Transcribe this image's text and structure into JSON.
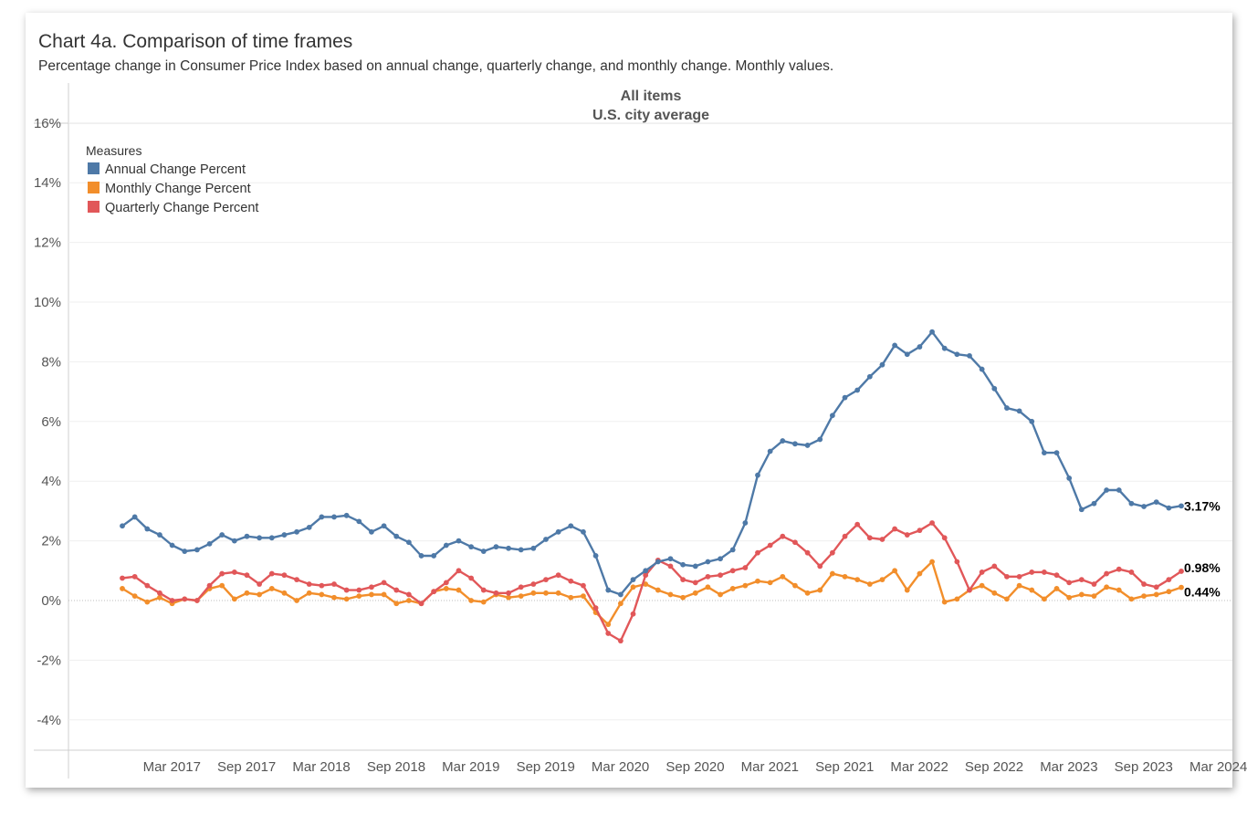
{
  "title": "Chart 4a. Comparison of time frames",
  "subtitle": "Percentage change in Consumer Price Index based on annual change, quarterly change, and monthly change. Monthly values.",
  "panel": {
    "line1": "All items",
    "line2": "U.S. city average"
  },
  "legend": {
    "title": "Measures"
  },
  "colors": {
    "annual": "#4e79a7",
    "monthly": "#f28e2b",
    "quarterly": "#e15759"
  },
  "chart_data": {
    "type": "line",
    "title": "Chart 4a. Comparison of time frames",
    "xlabel": "",
    "ylabel": "",
    "ylim": [
      -5,
      16.5
    ],
    "y_ticks": [
      "16%",
      "14%",
      "12%",
      "10%",
      "8%",
      "6%",
      "4%",
      "2%",
      "0%",
      "-2%",
      "-4%"
    ],
    "y_tick_values": [
      16,
      14,
      12,
      10,
      8,
      6,
      4,
      2,
      0,
      -2,
      -4
    ],
    "x_start": "Mar 2017",
    "x_ticks": [
      "Mar 2017",
      "Sep 2017",
      "Mar 2018",
      "Sep 2018",
      "Mar 2019",
      "Sep 2019",
      "Mar 2020",
      "Sep 2020",
      "Mar 2021",
      "Sep 2021",
      "Mar 2022",
      "Sep 2022",
      "Mar 2023",
      "Sep 2023",
      "Mar 2024"
    ],
    "x_tick_index": [
      2,
      8,
      14,
      20,
      26,
      32,
      38,
      44,
      50,
      56,
      62,
      68,
      74,
      80,
      86
    ],
    "series": [
      {
        "name": "Annual Change Percent",
        "color": "#4e79a7",
        "end_label": "3.17%",
        "values": [
          2.5,
          2.8,
          2.4,
          2.2,
          1.85,
          1.65,
          1.7,
          1.9,
          2.2,
          2.0,
          2.15,
          2.1,
          2.1,
          2.2,
          2.3,
          2.45,
          2.8,
          2.8,
          2.85,
          2.65,
          2.3,
          2.5,
          2.15,
          1.95,
          1.5,
          1.5,
          1.85,
          2.0,
          1.8,
          1.65,
          1.8,
          1.75,
          1.7,
          1.75,
          2.05,
          2.3,
          2.5,
          2.3,
          1.5,
          0.35,
          0.2,
          0.7,
          1.0,
          1.3,
          1.4,
          1.2,
          1.15,
          1.3,
          1.4,
          1.7,
          2.6,
          4.2,
          5.0,
          5.35,
          5.25,
          5.2,
          5.4,
          6.2,
          6.8,
          7.05,
          7.5,
          7.9,
          8.55,
          8.25,
          8.5,
          9.0,
          8.45,
          8.25,
          8.2,
          7.75,
          7.1,
          6.45,
          6.35,
          6.0,
          4.95,
          4.95,
          4.1,
          3.05,
          3.25,
          3.7,
          3.7,
          3.25,
          3.15,
          3.3,
          3.1,
          3.17
        ]
      },
      {
        "name": "Monthly Change Percent",
        "color": "#f28e2b",
        "end_label": "0.44%",
        "values": [
          0.4,
          0.15,
          -0.05,
          0.1,
          -0.1,
          0.05,
          0.0,
          0.4,
          0.5,
          0.05,
          0.25,
          0.2,
          0.4,
          0.25,
          0.0,
          0.25,
          0.2,
          0.1,
          0.05,
          0.15,
          0.2,
          0.2,
          -0.1,
          0.0,
          -0.1,
          0.3,
          0.4,
          0.35,
          0.0,
          -0.05,
          0.2,
          0.1,
          0.15,
          0.25,
          0.25,
          0.25,
          0.1,
          0.15,
          -0.4,
          -0.8,
          -0.1,
          0.45,
          0.55,
          0.35,
          0.2,
          0.1,
          0.25,
          0.45,
          0.2,
          0.4,
          0.5,
          0.65,
          0.6,
          0.8,
          0.5,
          0.25,
          0.35,
          0.9,
          0.8,
          0.7,
          0.55,
          0.7,
          1.0,
          0.35,
          0.9,
          1.3,
          -0.05,
          0.05,
          0.35,
          0.5,
          0.25,
          0.05,
          0.5,
          0.35,
          0.05,
          0.4,
          0.1,
          0.2,
          0.15,
          0.45,
          0.35,
          0.05,
          0.15,
          0.2,
          0.3,
          0.44
        ]
      },
      {
        "name": "Quarterly Change Percent",
        "color": "#e15759",
        "end_label": "0.98%",
        "values": [
          0.75,
          0.8,
          0.5,
          0.25,
          0.0,
          0.05,
          0.0,
          0.5,
          0.9,
          0.95,
          0.85,
          0.55,
          0.9,
          0.85,
          0.7,
          0.55,
          0.5,
          0.55,
          0.35,
          0.35,
          0.45,
          0.6,
          0.35,
          0.2,
          -0.1,
          0.3,
          0.6,
          1.0,
          0.75,
          0.35,
          0.25,
          0.25,
          0.45,
          0.55,
          0.7,
          0.85,
          0.65,
          0.5,
          -0.25,
          -1.1,
          -1.35,
          -0.45,
          0.85,
          1.35,
          1.15,
          0.7,
          0.6,
          0.8,
          0.85,
          1.0,
          1.1,
          1.6,
          1.85,
          2.15,
          1.95,
          1.6,
          1.15,
          1.6,
          2.15,
          2.55,
          2.1,
          2.05,
          2.4,
          2.2,
          2.35,
          2.6,
          2.1,
          1.3,
          0.35,
          0.95,
          1.15,
          0.8,
          0.8,
          0.95,
          0.95,
          0.85,
          0.6,
          0.7,
          0.55,
          0.9,
          1.05,
          0.95,
          0.55,
          0.45,
          0.7,
          0.98
        ]
      }
    ]
  }
}
